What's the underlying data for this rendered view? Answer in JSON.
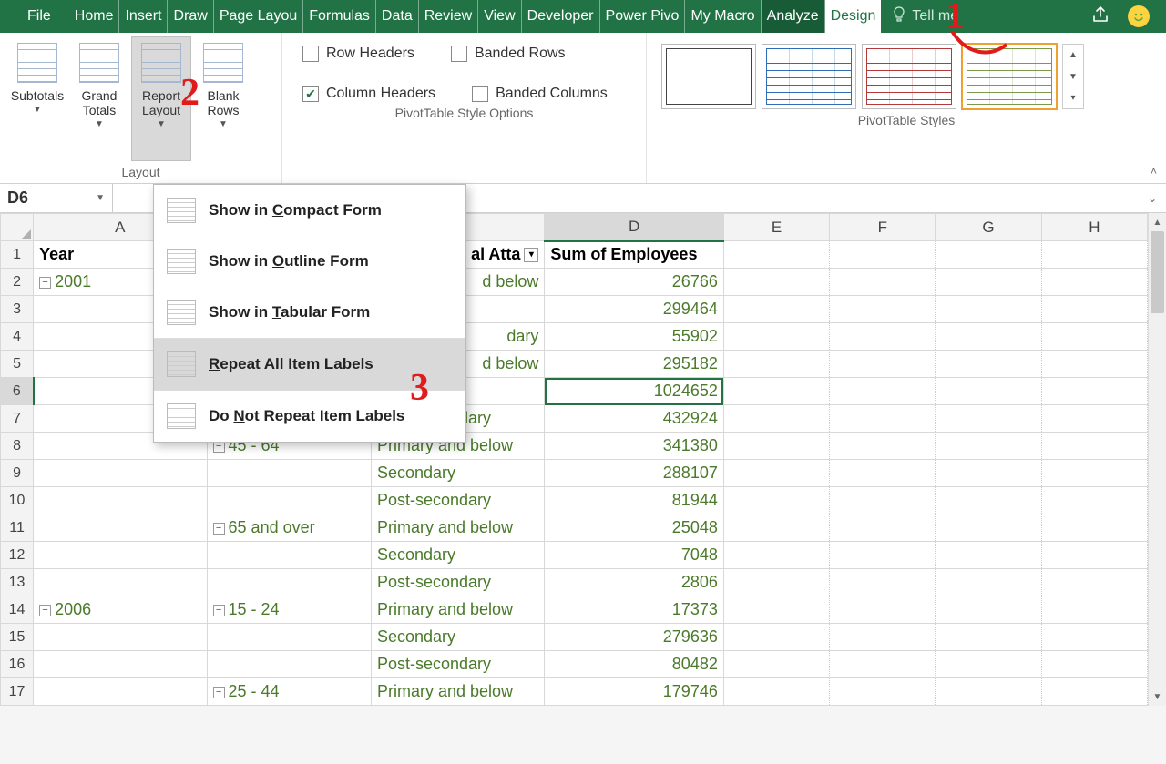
{
  "ribbonTabs": {
    "file": "File",
    "tabs": [
      "Home",
      "Insert",
      "Draw",
      "Page Layou",
      "Formulas",
      "Data",
      "Review",
      "View",
      "Developer",
      "Power Pivo",
      "My Macro",
      "Analyze",
      "Design"
    ],
    "activeContext1": "Analyze",
    "activeContext2": "Design",
    "tellMe": "Tell me"
  },
  "ribbon": {
    "layout": {
      "label": "Layout",
      "subtotals": "Subtotals",
      "grandTotals": "Grand\nTotals",
      "reportLayout": "Report\nLayout",
      "blankRows": "Blank\nRows"
    },
    "styleOptions": {
      "label": "PivotTable Style Options",
      "rowHeaders": "Row Headers",
      "bandedRows": "Banded Rows",
      "columnHeaders": "Column Headers",
      "bandedColumns": "Banded Columns",
      "rowHeadersChecked": false,
      "columnHeadersChecked": true
    },
    "styles": {
      "label": "PivotTable Styles",
      "thumbColors": [
        "#444",
        "#2f6db5",
        "#b33a3a",
        "#7a9a4b"
      ],
      "selectedIndex": 3
    }
  },
  "nameBox": "D6",
  "columns": [
    "A",
    "B",
    "C",
    "D",
    "E",
    "F",
    "G",
    "H"
  ],
  "selectedCol": "D",
  "selectedRow": 6,
  "pivotHeaders": {
    "year": "Year",
    "eduPartial": "al Atta",
    "sum": "Sum of Employees"
  },
  "rows": [
    {
      "n": 1,
      "A": "Year",
      "hdr": true,
      "C": "al Atta",
      "D": "Sum of Employees"
    },
    {
      "n": 2,
      "A": "2001",
      "collapseA": true,
      "C": "d below",
      "D": "26766"
    },
    {
      "n": 3,
      "D": "299464"
    },
    {
      "n": 4,
      "C": "dary",
      "D": "55902"
    },
    {
      "n": 5,
      "C": "d below",
      "D": "295182"
    },
    {
      "n": 6,
      "D": "1024652",
      "sel": true
    },
    {
      "n": 7,
      "C": "Post-secondary",
      "D": "432924"
    },
    {
      "n": 8,
      "B": "45 - 64",
      "collapseB": true,
      "C": "Primary and below",
      "D": "341380"
    },
    {
      "n": 9,
      "C": "Secondary",
      "D": "288107"
    },
    {
      "n": 10,
      "C": "Post-secondary",
      "D": "81944"
    },
    {
      "n": 11,
      "B": "65 and over",
      "collapseB": true,
      "C": "Primary and below",
      "D": "25048"
    },
    {
      "n": 12,
      "C": "Secondary",
      "D": "7048"
    },
    {
      "n": 13,
      "C": "Post-secondary",
      "D": "2806"
    },
    {
      "n": 14,
      "A": "2006",
      "collapseA": true,
      "B": "15 - 24",
      "collapseB": true,
      "C": "Primary and below",
      "D": "17373"
    },
    {
      "n": 15,
      "C": "Secondary",
      "D": "279636"
    },
    {
      "n": 16,
      "C": "Post-secondary",
      "D": "80482"
    },
    {
      "n": 17,
      "B": "25 - 44",
      "collapseB": true,
      "C": "Primary and below",
      "D": "179746"
    }
  ],
  "dropdown": {
    "items": [
      {
        "pre": "Show in ",
        "u": "C",
        "post": "ompact Form"
      },
      {
        "pre": "Show in ",
        "u": "O",
        "post": "utline Form"
      },
      {
        "pre": "Show in ",
        "u": "T",
        "post": "abular Form"
      },
      {
        "pre": "",
        "u": "R",
        "post": "epeat All Item Labels",
        "hover": true
      },
      {
        "pre": "Do ",
        "u": "N",
        "post": "ot Repeat Item Labels"
      }
    ]
  },
  "annotations": {
    "a1": "1",
    "a2": "2",
    "a3": "3"
  }
}
